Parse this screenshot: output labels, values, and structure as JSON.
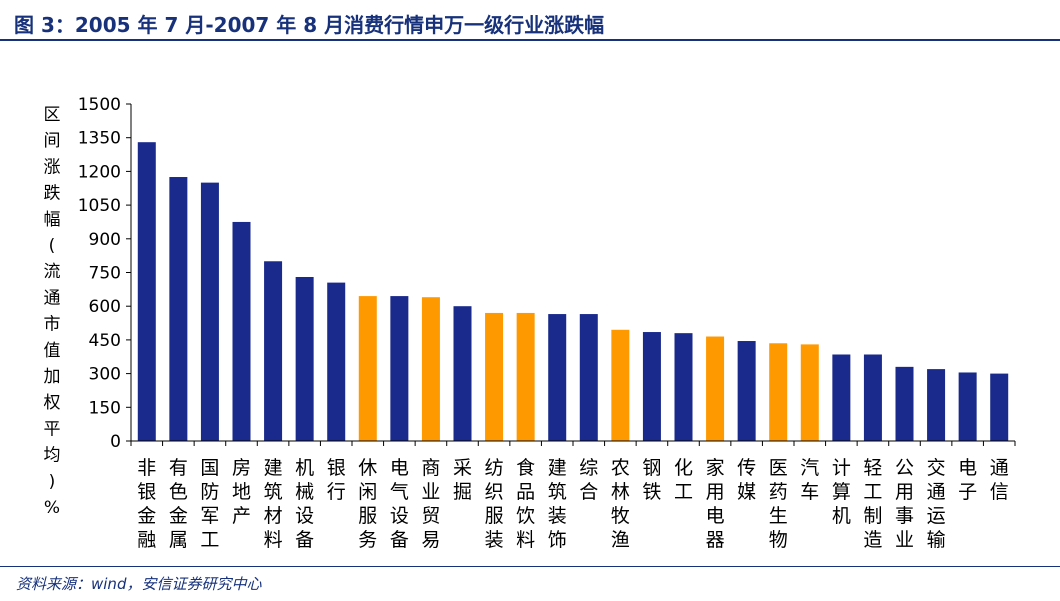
{
  "header": {
    "title": "图 3：2005 年 7 月-2007 年 8 月消费行情申万一级行业涨跌幅"
  },
  "footer": {
    "source": "资料来源：wind，安信证券研究中心"
  },
  "colors": {
    "accent": "#17327b",
    "bar_default": "#1a2a8c",
    "bar_consumer": "#ff9900"
  },
  "chart_data": {
    "type": "bar",
    "title": "",
    "xlabel": "",
    "ylabel": "区间涨跌幅(流通市值加权平均)%",
    "ylim": [
      0,
      1500
    ],
    "yticks": [
      0,
      150,
      300,
      450,
      600,
      750,
      900,
      1050,
      1200,
      1350,
      1500
    ],
    "grid": false,
    "categories": [
      "非银金融",
      "有色金属",
      "国防军工",
      "房地产",
      "建筑材料",
      "机械设备",
      "银行",
      "休闲服务",
      "电气设备",
      "商业贸易",
      "采掘",
      "纺织服装",
      "食品饮料",
      "建筑装饰",
      "综合",
      "农林牧渔",
      "钢铁",
      "化工",
      "家用电器",
      "传媒",
      "医药生物",
      "汽车",
      "计算机",
      "轻工制造",
      "公用事业",
      "交通运输",
      "电子",
      "通信"
    ],
    "values": [
      1330,
      1175,
      1150,
      975,
      800,
      730,
      705,
      645,
      645,
      640,
      600,
      570,
      570,
      565,
      565,
      495,
      485,
      480,
      465,
      445,
      435,
      430,
      385,
      385,
      330,
      320,
      305,
      300
    ],
    "highlight": [
      false,
      false,
      false,
      false,
      false,
      false,
      false,
      true,
      false,
      true,
      false,
      true,
      true,
      false,
      false,
      true,
      false,
      false,
      true,
      false,
      true,
      true,
      false,
      false,
      false,
      false,
      false,
      false
    ]
  }
}
